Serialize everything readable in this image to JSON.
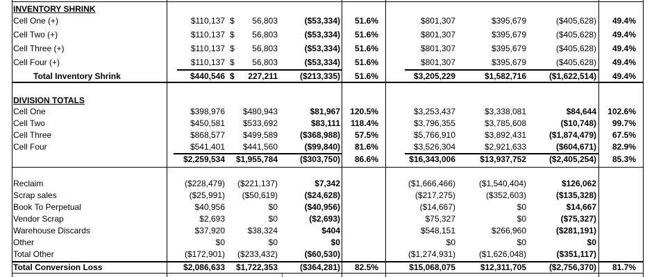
{
  "inventory_shrink": {
    "header": "INVENTORY SHRINK",
    "rows": [
      {
        "label": "Cell One (+)",
        "c1": "$110,137",
        "c2_sign": "$",
        "c2": "56,803",
        "diff": "($53,334)",
        "pct": "51.6%",
        "c5": "$801,307",
        "c6": "$395,679",
        "diff2": "($405,628)",
        "pct2": "49.4%"
      },
      {
        "label": "Cell Two (+)",
        "c1": "$110,137",
        "c2_sign": "$",
        "c2": "56,803",
        "diff": "($53,334)",
        "pct": "51.6%",
        "c5": "$801,307",
        "c6": "$395,679",
        "diff2": "($405,628)",
        "pct2": "49.4%"
      },
      {
        "label": "Cell Three (+)",
        "c1": "$110,137",
        "c2_sign": "$",
        "c2": "56,803",
        "diff": "($53,334)",
        "pct": "51.6%",
        "c5": "$801,307",
        "c6": "$395,679",
        "diff2": "($405,628)",
        "pct2": "49.4%"
      },
      {
        "label": "Cell Four (+)",
        "c1": "$110,137",
        "c2_sign": "$",
        "c2": "56,803",
        "diff": "($53,334)",
        "pct": "51.6%",
        "c5": "$801,307",
        "c6": "$395,679",
        "diff2": "($405,628)",
        "pct2": "49.4%"
      }
    ],
    "total": {
      "label": "Total Inventory Shrink",
      "c1": "$440,546",
      "c2_sign": "$",
      "c2": "227,211",
      "diff": "($213,335)",
      "pct": "51.6%",
      "c5": "$3,205,229",
      "c6": "$1,582,716",
      "diff2": "($1,622,514)",
      "pct2": "49.4%"
    }
  },
  "division_totals": {
    "header": "DIVISION TOTALS",
    "rows": [
      {
        "label": "Cell One",
        "c1": "$398,976",
        "c2": "$480,943",
        "diff": "$81,967",
        "pct": "120.5%",
        "c5": "$3,253,437",
        "c6": "$3,338,081",
        "diff2": "$84,644",
        "pct2": "102.6%"
      },
      {
        "label": "Cell Two",
        "c1": "$450,581",
        "c2": "$533,692",
        "diff": "$83,111",
        "pct": "118.4%",
        "c5": "$3,796,355",
        "c6": "$3,785,608",
        "diff2": "($10,748)",
        "pct2": "99.7%"
      },
      {
        "label": "Cell Three",
        "c1": "$868,577",
        "c2": "$499,589",
        "diff": "($368,988)",
        "pct": "57.5%",
        "c5": "$5,766,910",
        "c6": "$3,892,431",
        "diff2": "($1,874,479)",
        "pct2": "67.5%"
      },
      {
        "label": "Cell Four",
        "c1": "$541,401",
        "c2": "$441,560",
        "diff": "($99,840)",
        "pct": "81.6%",
        "c5": "$3,526,304",
        "c6": "$2,921,633",
        "diff2": "($604,671)",
        "pct2": "82.9%"
      }
    ],
    "total": {
      "c1": "$2,259,534",
      "c2": "$1,955,784",
      "diff": "($303,750)",
      "pct": "86.6%",
      "c5": "$16,343,006",
      "c6": "$13,937,752",
      "diff2": "($2,405,254)",
      "pct2": "85.3%"
    }
  },
  "other": {
    "rows": [
      {
        "label": "Reclaim",
        "c1": "($228,479)",
        "c2": "($221,137)",
        "diff": "$7,342",
        "c5": "($1,666,466)",
        "c6": "($1,540,404)",
        "diff2": "$126,062"
      },
      {
        "label": "Scrap sales",
        "c1": "($25,991)",
        "c2": "($50,619)",
        "diff": "($24,628)",
        "c5": "($217,275)",
        "c6": "($352,603)",
        "diff2": "($135,328)"
      },
      {
        "label": "Book To Perpetual",
        "c1": "$40,956",
        "c2": "$0",
        "diff": "($40,956)",
        "c5": "($14,667)",
        "c6": "$0",
        "diff2": "$14,667"
      },
      {
        "label": "Vendor Scrap",
        "c1": "$2,693",
        "c2": "$0",
        "diff": "($2,693)",
        "c5": "$75,327",
        "c6": "$0",
        "diff2": "($75,327)"
      },
      {
        "label": "Warehouse Discards",
        "c1": "$37,920",
        "c2": "$38,324",
        "diff": "$404",
        "c5": "$548,151",
        "c6": "$266,960",
        "diff2": "($281,191)"
      },
      {
        "label": "Other",
        "c1": "$0",
        "c2": "$0",
        "diff": "$0",
        "c5": "$0",
        "c6": "$0",
        "diff2": "$0"
      },
      {
        "label": "Total Other",
        "c1": "($172,901)",
        "c2": "($233,432)",
        "diff": "($60,530)",
        "c5": "($1,274,931)",
        "c6": "($1,626,048)",
        "diff2": "($351,117)"
      }
    ],
    "conversion": {
      "label": "Total Conversion Loss",
      "c1": "$2,086,633",
      "c2": "$1,722,353",
      "diff": "($364,281)",
      "pct": "82.5%",
      "c5": "$15,068,075",
      "c6": "$12,311,705",
      "diff2": "($2,756,370)",
      "pct2": "81.7%"
    }
  }
}
